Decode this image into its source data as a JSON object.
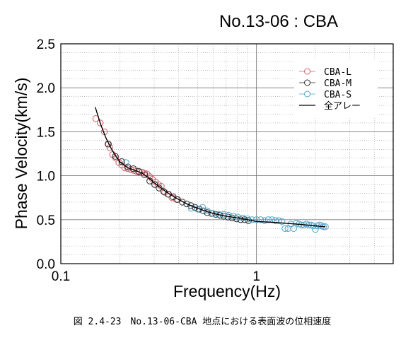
{
  "chart_data": {
    "type": "scatter",
    "title": "No.13-06 : CBA",
    "xlabel": "Frequency(Hz)",
    "ylabel": "Phase Velocity(km/s)",
    "xscale": "log",
    "xlim": [
      0.1,
      5
    ],
    "ylim": [
      0.0,
      2.5
    ],
    "x_ticks": [
      {
        "v": 0.1,
        "label": "0.1"
      },
      {
        "v": 1,
        "label": "1"
      }
    ],
    "y_ticks": [
      {
        "v": 0.0,
        "label": "0.0"
      },
      {
        "v": 0.5,
        "label": "0.5"
      },
      {
        "v": 1.0,
        "label": "1.0"
      },
      {
        "v": 1.5,
        "label": "1.5"
      },
      {
        "v": 2.0,
        "label": "2.0"
      },
      {
        "v": 2.5,
        "label": "2.5"
      }
    ],
    "grid": true,
    "legend_position": "top-right",
    "series": [
      {
        "name": "CBA-L",
        "marker": "circle-open",
        "color": "#d2616a",
        "points": [
          [
            0.151,
            1.65
          ],
          [
            0.159,
            1.6
          ],
          [
            0.167,
            1.5
          ],
          [
            0.174,
            1.36
          ],
          [
            0.178,
            1.32
          ],
          [
            0.184,
            1.24
          ],
          [
            0.191,
            1.2
          ],
          [
            0.198,
            1.15
          ],
          [
            0.205,
            1.12
          ],
          [
            0.212,
            1.09
          ],
          [
            0.22,
            1.08
          ],
          [
            0.228,
            1.07
          ],
          [
            0.236,
            1.06
          ],
          [
            0.244,
            1.05
          ],
          [
            0.252,
            1.04
          ],
          [
            0.26,
            1.04
          ],
          [
            0.268,
            1.03
          ],
          [
            0.276,
            1.02
          ],
          [
            0.285,
            0.99
          ],
          [
            0.294,
            0.96
          ],
          [
            0.305,
            0.93
          ],
          [
            0.315,
            0.9
          ],
          [
            0.326,
            0.88
          ],
          [
            0.34,
            0.81
          ],
          [
            0.352,
            0.79
          ],
          [
            0.37,
            0.75
          ],
          [
            0.39,
            0.73
          ]
        ]
      },
      {
        "name": "CBA-M",
        "marker": "circle-open",
        "color": "#2b2b2b",
        "points": [
          [
            0.175,
            1.36
          ],
          [
            0.19,
            1.22
          ],
          [
            0.205,
            1.16
          ],
          [
            0.22,
            1.1
          ],
          [
            0.235,
            1.08
          ],
          [
            0.25,
            1.05
          ],
          [
            0.268,
            1.01
          ],
          [
            0.285,
            0.94
          ],
          [
            0.302,
            0.9
          ],
          [
            0.318,
            0.86
          ],
          [
            0.336,
            0.82
          ],
          [
            0.355,
            0.79
          ],
          [
            0.375,
            0.76
          ],
          [
            0.395,
            0.73
          ],
          [
            0.418,
            0.7
          ],
          [
            0.44,
            0.68
          ],
          [
            0.462,
            0.66
          ],
          [
            0.485,
            0.64
          ],
          [
            0.51,
            0.62
          ],
          [
            0.535,
            0.6
          ],
          [
            0.56,
            0.58
          ],
          [
            0.59,
            0.57
          ],
          [
            0.62,
            0.56
          ],
          [
            0.65,
            0.55
          ],
          [
            0.68,
            0.54
          ],
          [
            0.715,
            0.53
          ],
          [
            0.75,
            0.52
          ],
          [
            0.79,
            0.51
          ],
          [
            0.83,
            0.5
          ],
          [
            0.87,
            0.5
          ],
          [
            0.91,
            0.49
          ]
        ]
      },
      {
        "name": "CBA-S",
        "marker": "circle-open",
        "color": "#4fa3cc",
        "points": [
          [
            0.215,
            1.15
          ],
          [
            0.465,
            0.63
          ],
          [
            0.5,
            0.62
          ],
          [
            0.53,
            0.64
          ],
          [
            0.56,
            0.6
          ],
          [
            0.6,
            0.57
          ],
          [
            0.64,
            0.56
          ],
          [
            0.68,
            0.56
          ],
          [
            0.72,
            0.55
          ],
          [
            0.76,
            0.54
          ],
          [
            0.8,
            0.53
          ],
          [
            0.85,
            0.52
          ],
          [
            0.9,
            0.51
          ],
          [
            0.95,
            0.5
          ],
          [
            1.0,
            0.5
          ],
          [
            1.05,
            0.5
          ],
          [
            1.1,
            0.49
          ],
          [
            1.15,
            0.5
          ],
          [
            1.2,
            0.5
          ],
          [
            1.25,
            0.49
          ],
          [
            1.3,
            0.49
          ],
          [
            1.35,
            0.48
          ],
          [
            1.4,
            0.4
          ],
          [
            1.45,
            0.4
          ],
          [
            1.5,
            0.45
          ],
          [
            1.55,
            0.4
          ],
          [
            1.6,
            0.46
          ],
          [
            1.65,
            0.45
          ],
          [
            1.7,
            0.44
          ],
          [
            1.75,
            0.44
          ],
          [
            1.8,
            0.45
          ],
          [
            1.85,
            0.44
          ],
          [
            1.9,
            0.44
          ],
          [
            1.95,
            0.43
          ],
          [
            2.0,
            0.39
          ],
          [
            2.05,
            0.43
          ],
          [
            2.1,
            0.44
          ],
          [
            2.15,
            0.43
          ],
          [
            2.2,
            0.42
          ],
          [
            2.25,
            0.42
          ]
        ]
      },
      {
        "name": "全アレー",
        "marker": "line",
        "color": "#000000",
        "points": [
          [
            0.15,
            1.78
          ],
          [
            0.16,
            1.58
          ],
          [
            0.17,
            1.43
          ],
          [
            0.18,
            1.32
          ],
          [
            0.19,
            1.23
          ],
          [
            0.2,
            1.16
          ],
          [
            0.22,
            1.09
          ],
          [
            0.24,
            1.06
          ],
          [
            0.26,
            1.03
          ],
          [
            0.28,
            0.98
          ],
          [
            0.3,
            0.92
          ],
          [
            0.33,
            0.85
          ],
          [
            0.36,
            0.79
          ],
          [
            0.4,
            0.73
          ],
          [
            0.45,
            0.67
          ],
          [
            0.5,
            0.63
          ],
          [
            0.56,
            0.59
          ],
          [
            0.63,
            0.56
          ],
          [
            0.7,
            0.54
          ],
          [
            0.8,
            0.52
          ],
          [
            0.9,
            0.5
          ],
          [
            1.0,
            0.48
          ],
          [
            1.2,
            0.47
          ],
          [
            1.4,
            0.46
          ],
          [
            1.6,
            0.45
          ],
          [
            1.8,
            0.44
          ],
          [
            2.0,
            0.43
          ],
          [
            2.25,
            0.42
          ]
        ]
      }
    ]
  },
  "caption": "図 2.4-23　No.13-06-CBA 地点における表面波の位相速度"
}
